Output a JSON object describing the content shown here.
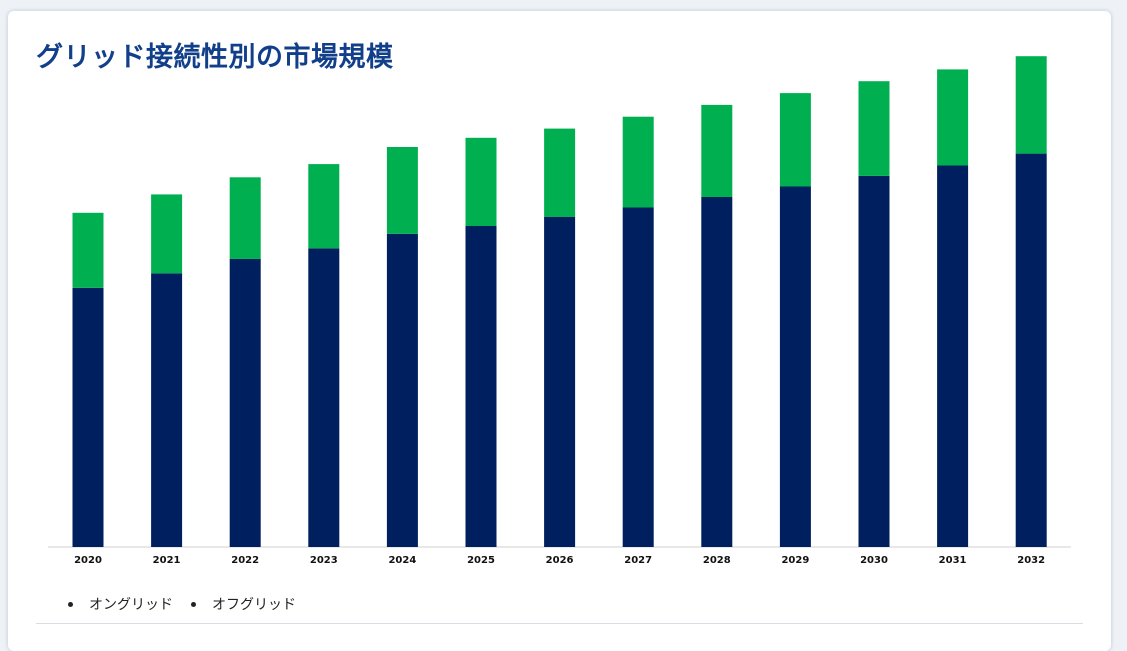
{
  "title": "グリッド接続性別の市場規模",
  "legend": {
    "items": [
      "オングリッド",
      "オフグリッド"
    ]
  },
  "colors": {
    "title": "#123f8a",
    "on_grid": "#001f5e",
    "off_grid": "#00b050",
    "axis": "#d0d0d0"
  },
  "chart_data": {
    "type": "bar",
    "stacked": true,
    "categories": [
      "2020",
      "2021",
      "2022",
      "2023",
      "2024",
      "2025",
      "2026",
      "2027",
      "2028",
      "2029",
      "2030",
      "2031",
      "2032"
    ],
    "series": [
      {
        "name": "オングリッド",
        "values": [
          197,
          208,
          219,
          227,
          238,
          244,
          251,
          258,
          266,
          274,
          282,
          290,
          299
        ]
      },
      {
        "name": "オフグリッド",
        "values": [
          57,
          60,
          62,
          64,
          66,
          67,
          67,
          69,
          70,
          71,
          72,
          73,
          74
        ]
      }
    ],
    "ylim": [
      0,
      380
    ],
    "grid": false,
    "legend_position": "bottom-left",
    "xlabel": "",
    "ylabel": ""
  }
}
